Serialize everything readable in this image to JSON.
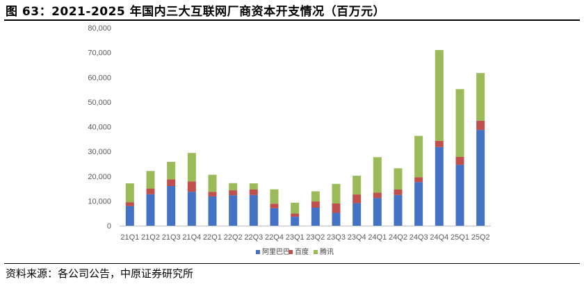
{
  "title": "图 63：2021-2025 年国内三大互联网厂商资本开支情况（百万元）",
  "source": "资料来源：各公司公告，中原证券研究所",
  "chart_data": {
    "type": "bar",
    "stacked": true,
    "categories": [
      "21Q1",
      "21Q2",
      "21Q3",
      "21Q4",
      "22Q1",
      "22Q2",
      "22Q3",
      "22Q4",
      "23Q1",
      "23Q2",
      "23Q3",
      "23Q4",
      "24Q1",
      "24Q2",
      "24Q3",
      "24Q4",
      "25Q1",
      "25Q2"
    ],
    "series": [
      {
        "name": "阿里巴巴",
        "color": "#4472C4",
        "values": [
          7900,
          12700,
          16000,
          13700,
          11800,
          12300,
          12400,
          7100,
          3600,
          7300,
          5200,
          9100,
          11200,
          12400,
          17600,
          31800,
          24600,
          38700
        ]
      },
      {
        "name": "百度",
        "color": "#C0504D",
        "values": [
          1600,
          2300,
          2700,
          4200,
          1900,
          2000,
          2200,
          1800,
          1300,
          2500,
          3800,
          3500,
          2200,
          2200,
          2000,
          2500,
          3200,
          3700
        ]
      },
      {
        "name": "腾讯",
        "color": "#9BBB59",
        "values": [
          7600,
          7100,
          7100,
          11500,
          6900,
          2900,
          2500,
          5800,
          4400,
          4100,
          7900,
          7600,
          14300,
          8600,
          16700,
          36700,
          27400,
          19300
        ]
      }
    ],
    "yticks": [
      "0",
      "10000",
      "20000",
      "30000",
      "40000",
      "50000",
      "60000",
      "70000",
      "80000"
    ],
    "ylim": [
      0,
      80000
    ],
    "legend_position": "bottom-center",
    "grid": false
  }
}
